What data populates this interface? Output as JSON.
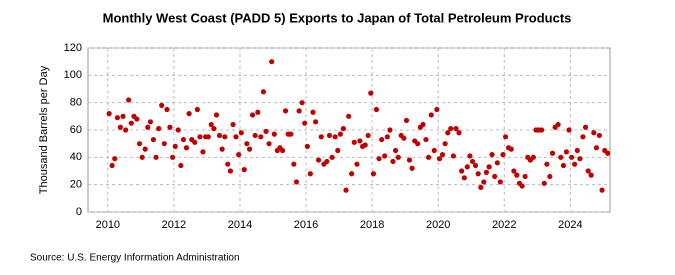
{
  "chart_data": {
    "type": "scatter",
    "title": "Monthly West Coast (PADD 5) Exports to Japan of Total Petroleum Products",
    "y_label": "Thousand Barrels per Day",
    "source": "Source: U.S. Energy Information Administration",
    "color": "#c00000",
    "grid": true,
    "xlim": [
      2009.4,
      2025.2
    ],
    "ylim": [
      0,
      120
    ],
    "xticks": [
      2010,
      2012,
      2014,
      2016,
      2018,
      2020,
      2022,
      2024
    ],
    "yticks": [
      0,
      20,
      40,
      60,
      80,
      100,
      120
    ],
    "x": [
      2010.04,
      2010.13,
      2010.21,
      2010.29,
      2010.38,
      2010.46,
      2010.54,
      2010.63,
      2010.71,
      2010.79,
      2010.88,
      2010.96,
      2011.04,
      2011.13,
      2011.21,
      2011.29,
      2011.38,
      2011.46,
      2011.54,
      2011.63,
      2011.71,
      2011.79,
      2011.88,
      2011.96,
      2012.04,
      2012.13,
      2012.21,
      2012.29,
      2012.38,
      2012.46,
      2012.54,
      2012.63,
      2012.71,
      2012.79,
      2012.88,
      2012.96,
      2013.04,
      2013.13,
      2013.21,
      2013.29,
      2013.38,
      2013.46,
      2013.54,
      2013.63,
      2013.71,
      2013.79,
      2013.88,
      2013.96,
      2014.04,
      2014.13,
      2014.21,
      2014.29,
      2014.38,
      2014.46,
      2014.54,
      2014.63,
      2014.71,
      2014.79,
      2014.88,
      2014.96,
      2015.04,
      2015.13,
      2015.21,
      2015.29,
      2015.38,
      2015.46,
      2015.54,
      2015.63,
      2015.71,
      2015.79,
      2015.88,
      2015.96,
      2016.04,
      2016.13,
      2016.21,
      2016.29,
      2016.38,
      2016.46,
      2016.54,
      2016.63,
      2016.71,
      2016.79,
      2016.88,
      2016.96,
      2017.04,
      2017.13,
      2017.21,
      2017.29,
      2017.38,
      2017.46,
      2017.54,
      2017.63,
      2017.71,
      2017.79,
      2017.88,
      2017.96,
      2018.04,
      2018.13,
      2018.21,
      2018.29,
      2018.38,
      2018.46,
      2018.54,
      2018.63,
      2018.71,
      2018.79,
      2018.88,
      2018.96,
      2019.04,
      2019.13,
      2019.21,
      2019.29,
      2019.38,
      2019.46,
      2019.54,
      2019.63,
      2019.71,
      2019.79,
      2019.88,
      2019.96,
      2020.04,
      2020.13,
      2020.21,
      2020.29,
      2020.38,
      2020.46,
      2020.54,
      2020.63,
      2020.71,
      2020.79,
      2020.88,
      2020.96,
      2021.04,
      2021.13,
      2021.21,
      2021.29,
      2021.38,
      2021.46,
      2021.54,
      2021.63,
      2021.71,
      2021.79,
      2021.88,
      2021.96,
      2022.04,
      2022.13,
      2022.21,
      2022.29,
      2022.38,
      2022.46,
      2022.54,
      2022.63,
      2022.71,
      2022.79,
      2022.88,
      2022.96,
      2023.04,
      2023.13,
      2023.21,
      2023.29,
      2023.38,
      2023.46,
      2023.54,
      2023.63,
      2023.71,
      2023.79,
      2023.88,
      2023.96,
      2024.04,
      2024.13,
      2024.21,
      2024.29,
      2024.38,
      2024.46,
      2024.54,
      2024.63,
      2024.71,
      2024.79,
      2024.88,
      2024.96,
      2025.04,
      2025.13
    ],
    "values": [
      72,
      34,
      39,
      69,
      62,
      70,
      60,
      82,
      65,
      70,
      68,
      50,
      40,
      46,
      62,
      66,
      53,
      40,
      61,
      78,
      50,
      75,
      62,
      40,
      48,
      60,
      34,
      53,
      47,
      72,
      53,
      51,
      75,
      55,
      44,
      55,
      55,
      64,
      61,
      71,
      56,
      46,
      55,
      35,
      30,
      64,
      55,
      42,
      58,
      31,
      50,
      46,
      71,
      56,
      73,
      55,
      88,
      59,
      50,
      110,
      57,
      45,
      47,
      45,
      74,
      57,
      57,
      35,
      22,
      74,
      80,
      65,
      48,
      28,
      73,
      66,
      38,
      55,
      35,
      37,
      56,
      40,
      55,
      45,
      57,
      61,
      16,
      70,
      28,
      51,
      35,
      52,
      48,
      49,
      56,
      87,
      28,
      75,
      39,
      53,
      41,
      55,
      60,
      37,
      45,
      40,
      56,
      54,
      67,
      38,
      32,
      52,
      50,
      62,
      64,
      53,
      40,
      71,
      45,
      75,
      39,
      42,
      50,
      58,
      61,
      41,
      61,
      58,
      30,
      25,
      33,
      41,
      37,
      34,
      28,
      18,
      22,
      29,
      33,
      42,
      26,
      36,
      22,
      42,
      55,
      47,
      46,
      30,
      27,
      21,
      19,
      26,
      40,
      38,
      40,
      60,
      60,
      60,
      21,
      35,
      26,
      43,
      62,
      64,
      40,
      34,
      44,
      60,
      40,
      35,
      45,
      39,
      55,
      62,
      30,
      27,
      58,
      47,
      56,
      16,
      45,
      43
    ]
  }
}
